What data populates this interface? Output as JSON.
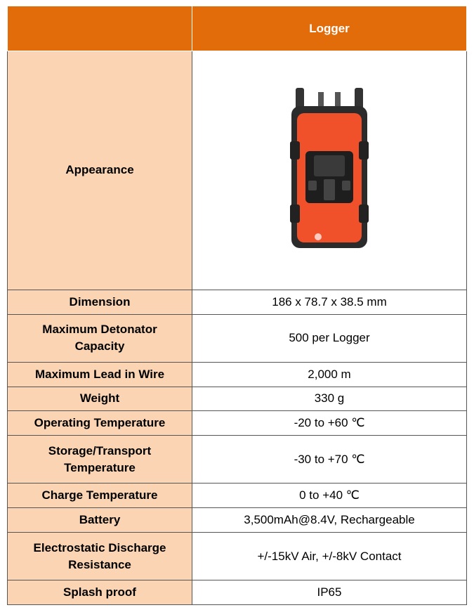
{
  "table": {
    "header": "Logger",
    "appearance": "Appearance",
    "rows": [
      {
        "label": "Dimension",
        "value": "186 x 78.7 x 38.5 mm"
      },
      {
        "label": "Maximum Detonator Capacity",
        "value": "500 per Logger"
      },
      {
        "label": "Maximum Lead in Wire",
        "value": "2,000 m"
      },
      {
        "label": "Weight",
        "value": "330 g"
      },
      {
        "label": "Operating Temperature",
        "value": "-20 to +60 ℃"
      },
      {
        "label": "Storage/Transport Temperature",
        "value": "-30 to +70 ℃"
      },
      {
        "label": "Charge Temperature",
        "value": "0 to +40 ℃"
      },
      {
        "label": "Battery",
        "value": "3,500mAh@8.4V, Rechargeable"
      },
      {
        "label": "Electrostatic Discharge Resistance",
        "value": "+/-15kV Air, +/-8kV Contact"
      },
      {
        "label": "Splash proof",
        "value": "IP65"
      }
    ]
  }
}
